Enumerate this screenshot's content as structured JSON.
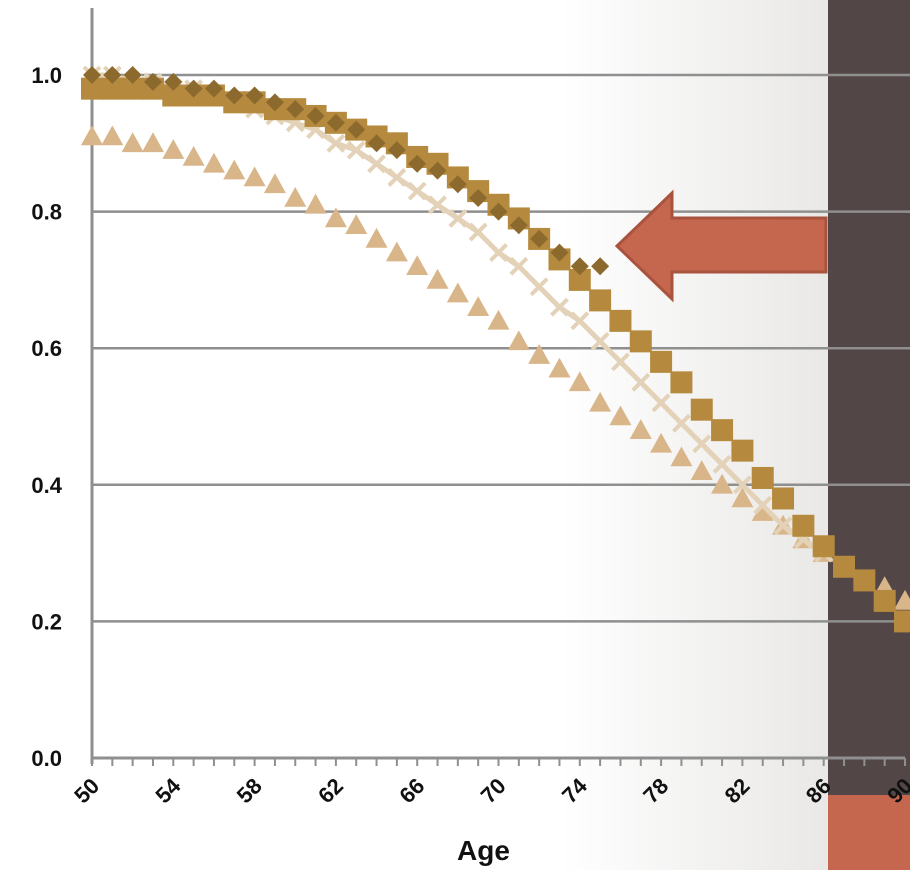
{
  "chart_data": {
    "type": "scatter",
    "title": "",
    "xlabel": "Age",
    "ylabel": "",
    "xlim": [
      50,
      90
    ],
    "ylim": [
      0.0,
      1.0
    ],
    "grid": true,
    "y_ticks": [
      "0.0",
      "0.2",
      "0.4",
      "0.6",
      "0.8",
      "1.0"
    ],
    "x_ticks": [
      "50",
      "54",
      "58",
      "62",
      "66",
      "70",
      "74",
      "78",
      "82",
      "86",
      "90"
    ],
    "series": [
      {
        "marker": "diamond",
        "color": "#8c6a2e",
        "x": [
          50,
          51,
          52,
          53,
          54,
          55,
          56,
          57,
          58,
          59,
          60,
          61,
          62,
          63,
          64,
          65,
          66,
          67,
          68,
          69,
          70,
          71,
          72,
          73,
          74,
          75
        ],
        "values": [
          1.0,
          1.0,
          1.0,
          0.99,
          0.99,
          0.98,
          0.98,
          0.97,
          0.97,
          0.96,
          0.95,
          0.94,
          0.93,
          0.92,
          0.9,
          0.89,
          0.87,
          0.86,
          0.84,
          0.82,
          0.8,
          0.78,
          0.76,
          0.74,
          0.72,
          0.72
        ]
      },
      {
        "marker": "square",
        "color": "#b58a3e",
        "x": [
          50,
          51,
          52,
          53,
          54,
          55,
          56,
          57,
          58,
          59,
          60,
          61,
          62,
          63,
          64,
          65,
          66,
          67,
          68,
          69,
          70,
          71,
          72,
          73,
          74,
          75,
          76,
          77,
          78,
          79,
          80,
          81,
          82,
          83,
          84,
          85,
          86,
          87,
          88,
          89,
          90
        ],
        "values": [
          0.98,
          0.98,
          0.98,
          0.98,
          0.97,
          0.97,
          0.97,
          0.96,
          0.96,
          0.95,
          0.95,
          0.94,
          0.93,
          0.92,
          0.91,
          0.9,
          0.88,
          0.87,
          0.85,
          0.83,
          0.81,
          0.79,
          0.76,
          0.73,
          0.7,
          0.67,
          0.64,
          0.61,
          0.58,
          0.55,
          0.51,
          0.48,
          0.45,
          0.41,
          0.38,
          0.34,
          0.31,
          0.28,
          0.26,
          0.23,
          0.2
        ]
      },
      {
        "marker": "cross",
        "color": "#e3d2b8",
        "x": [
          50,
          51,
          52,
          53,
          54,
          55,
          56,
          57,
          58,
          59,
          60,
          61,
          62,
          63,
          64,
          65,
          66,
          67,
          68,
          69,
          70,
          71,
          72,
          73,
          74,
          75,
          76,
          77,
          78,
          79,
          80,
          81,
          82,
          83,
          84,
          85,
          86
        ],
        "values": [
          1.0,
          1.0,
          0.99,
          0.99,
          0.98,
          0.98,
          0.97,
          0.96,
          0.95,
          0.94,
          0.93,
          0.92,
          0.9,
          0.89,
          0.87,
          0.85,
          0.83,
          0.81,
          0.79,
          0.77,
          0.74,
          0.72,
          0.69,
          0.66,
          0.64,
          0.61,
          0.58,
          0.55,
          0.52,
          0.49,
          0.46,
          0.43,
          0.4,
          0.37,
          0.34,
          0.32,
          0.3
        ]
      },
      {
        "marker": "triangle",
        "color": "#d9b58a",
        "x": [
          50,
          51,
          52,
          53,
          54,
          55,
          56,
          57,
          58,
          59,
          60,
          61,
          62,
          63,
          64,
          65,
          66,
          67,
          68,
          69,
          70,
          71,
          72,
          73,
          74,
          75,
          76,
          77,
          78,
          79,
          80,
          81,
          82,
          83,
          84,
          85,
          86,
          87,
          88,
          89,
          90
        ],
        "values": [
          0.91,
          0.91,
          0.9,
          0.9,
          0.89,
          0.88,
          0.87,
          0.86,
          0.85,
          0.84,
          0.82,
          0.81,
          0.79,
          0.78,
          0.76,
          0.74,
          0.72,
          0.7,
          0.68,
          0.66,
          0.64,
          0.61,
          0.59,
          0.57,
          0.55,
          0.52,
          0.5,
          0.48,
          0.46,
          0.44,
          0.42,
          0.4,
          0.38,
          0.36,
          0.34,
          0.32,
          0.3,
          0.28,
          0.26,
          0.25,
          0.23
        ]
      }
    ],
    "annotation_arrow": {
      "color": "#c5674f",
      "direction": "left"
    }
  }
}
